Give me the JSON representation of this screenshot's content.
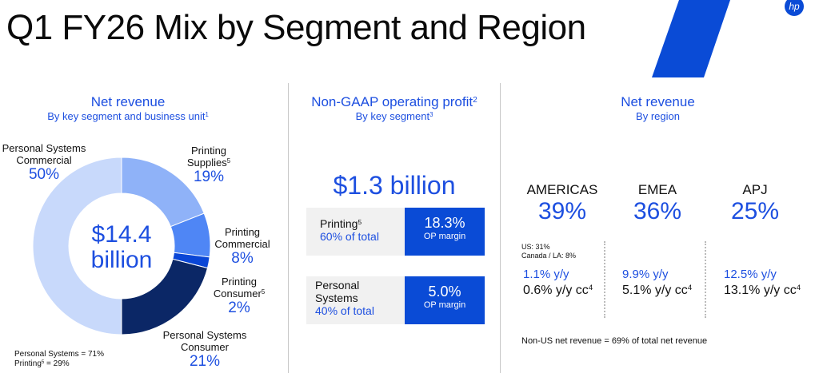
{
  "title": "Q1 FY26 Mix by Segment and Region",
  "logo": "hp",
  "colors": {
    "brand_blue": "#0a4bd6",
    "text_blue": "#1d4fe0"
  },
  "left": {
    "heading": "Net revenue",
    "subheading": "By key segment and business unit",
    "subheading_sup": "1",
    "center_value": "$14.4",
    "center_unit": "billion",
    "footnote_ps": "Personal Systems = 71%",
    "footnote_printing": "Printing",
    "footnote_printing_sup": "5",
    "footnote_printing_value": " = 29%"
  },
  "chart_data": {
    "type": "pie",
    "donut": true,
    "slices": [
      {
        "label": "Printing Supplies",
        "sup": "5",
        "value": 19,
        "display": "19%",
        "color": "#8fb2f8"
      },
      {
        "label": "Printing Commercial",
        "sup": "",
        "value": 8,
        "display": "8%",
        "color": "#4f86f5"
      },
      {
        "label": "Printing Consumer",
        "sup": "5",
        "value": 2,
        "display": "2%",
        "color": "#0a46d6"
      },
      {
        "label": "Personal Systems Consumer",
        "sup": "",
        "value": 21,
        "display": "21%",
        "color": "#0b2766"
      },
      {
        "label": "Personal Systems Commercial",
        "sup": "",
        "value": 50,
        "display": "50%",
        "color": "#c8d9fb"
      }
    ]
  },
  "middle": {
    "heading": "Non-GAAP operating profit",
    "heading_sup": "2",
    "subheading": "By key segment",
    "subheading_sup": "3",
    "total": "$1.3 billion",
    "segments": [
      {
        "name": "Printing",
        "sup": "5",
        "share": "60% of total",
        "margin": "18.3%",
        "margin_label": "OP margin"
      },
      {
        "name": "Personal Systems",
        "sup": "",
        "share": "40% of total",
        "margin": "5.0%",
        "margin_label": "OP margin"
      }
    ]
  },
  "right": {
    "heading": "Net revenue",
    "subheading": "By region",
    "regions": [
      {
        "name": "AMERICAS",
        "share": "39%",
        "yy": "1.1% y/y",
        "cc": "0.6% y/y cc",
        "cc_sup": "4"
      },
      {
        "name": "EMEA",
        "share": "36%",
        "yy": "9.9% y/y",
        "cc": "5.1% y/y cc",
        "cc_sup": "4"
      },
      {
        "name": "APJ",
        "share": "25%",
        "yy": "12.5% y/y",
        "cc": "13.1% y/y cc",
        "cc_sup": "4"
      }
    ],
    "americas_detail_us": "US: 31%",
    "americas_detail_canada": "Canada / LA: 8%",
    "footnote": "Non-US net revenue = 69% of total net revenue"
  }
}
